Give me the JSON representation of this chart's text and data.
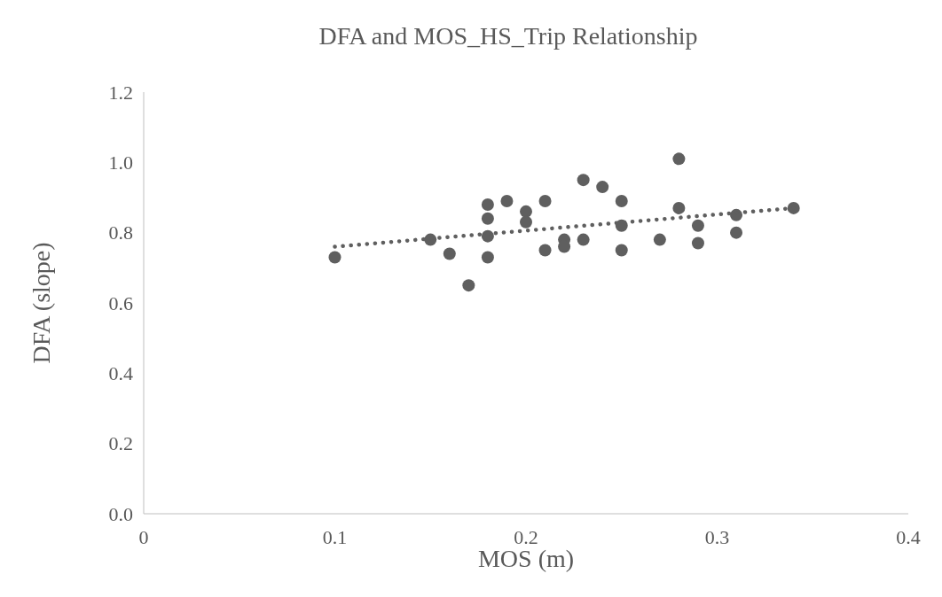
{
  "chart_data": {
    "type": "scatter",
    "title": "DFA and MOS_HS_Trip Relationship",
    "xlabel": "MOS (m)",
    "ylabel": "DFA (slope)",
    "xlim": [
      0,
      0.4
    ],
    "xticks": [
      0,
      0.1,
      0.2,
      0.3,
      0.4
    ],
    "ylim": [
      0,
      1.2
    ],
    "yticks": [
      {
        "value": 0,
        "label": "0.0"
      },
      0.2,
      0.4,
      0.6,
      0.8,
      {
        "value": 1,
        "label": "1.0"
      },
      1.2
    ],
    "grid": false,
    "marker": "circle",
    "series": [
      {
        "color": "#5f5f5f",
        "x": [
          0.1,
          0.15,
          0.16,
          0.17,
          0.18,
          0.18,
          0.18,
          0.18,
          0.19,
          0.2,
          0.2,
          0.21,
          0.21,
          0.22,
          0.22,
          0.23,
          0.23,
          0.24,
          0.25,
          0.25,
          0.25,
          0.27,
          0.28,
          0.28,
          0.29,
          0.29,
          0.31,
          0.31,
          0.34
        ],
        "values": [
          0.73,
          0.78,
          0.74,
          0.65,
          0.88,
          0.84,
          0.79,
          0.73,
          0.89,
          0.86,
          0.83,
          0.89,
          0.75,
          0.78,
          0.76,
          0.95,
          0.78,
          0.93,
          0.89,
          0.82,
          0.75,
          0.78,
          1.01,
          0.87,
          0.82,
          0.77,
          0.85,
          0.8,
          0.87
        ]
      },
      {
        "type": "line",
        "color": "#5f5f5f",
        "line_style": "dotted",
        "marker": "none",
        "x": [
          0.1,
          0.34
        ],
        "values": [
          0.76,
          0.87
        ]
      }
    ]
  }
}
